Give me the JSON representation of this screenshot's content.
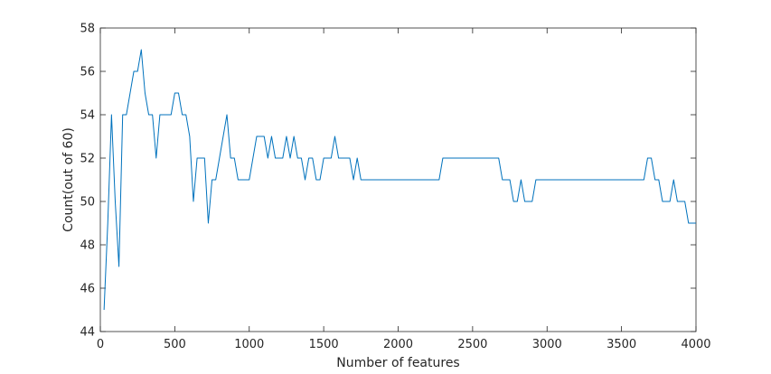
{
  "chart_data": {
    "type": "line",
    "title": "",
    "xlabel": "Number of features",
    "ylabel": "Count(out of 60)",
    "xlim": [
      0,
      4000
    ],
    "ylim": [
      44,
      58
    ],
    "xticks": [
      0,
      500,
      1000,
      1500,
      2000,
      2500,
      3000,
      3500,
      4000
    ],
    "yticks": [
      44,
      46,
      48,
      50,
      52,
      54,
      56,
      58
    ],
    "grid": false,
    "line_color": "#0072bd",
    "series": [
      {
        "x": [
          25,
          50,
          75,
          100,
          125,
          150,
          175,
          200,
          225,
          250,
          275,
          300,
          325,
          350,
          375,
          400,
          425,
          450,
          475,
          500,
          525,
          550,
          575,
          600,
          625,
          650,
          675,
          700,
          725,
          750,
          775,
          800,
          825,
          850,
          875,
          900,
          925,
          950,
          975,
          1000,
          1025,
          1050,
          1075,
          1100,
          1125,
          1150,
          1175,
          1200,
          1225,
          1250,
          1275,
          1300,
          1325,
          1350,
          1375,
          1400,
          1425,
          1450,
          1475,
          1500,
          1525,
          1550,
          1575,
          1600,
          1625,
          1650,
          1675,
          1700,
          1725,
          1750,
          1775,
          1800,
          2250,
          2275,
          2300,
          2325,
          2650,
          2675,
          2700,
          2725,
          2750,
          2775,
          2800,
          2825,
          2850,
          2875,
          2900,
          2925,
          2950,
          3625,
          3650,
          3675,
          3700,
          3725,
          3750,
          3775,
          3800,
          3825,
          3850,
          3875,
          3900,
          3925,
          3950,
          3975,
          4000
        ],
        "y": [
          45,
          49,
          54,
          50,
          47,
          54,
          54,
          55,
          56,
          56,
          57,
          55,
          54,
          54,
          52,
          54,
          54,
          54,
          54,
          55,
          55,
          54,
          54,
          53,
          50,
          52,
          52,
          52,
          49,
          51,
          51,
          52,
          53,
          54,
          52,
          52,
          51,
          51,
          51,
          51,
          52,
          53,
          53,
          53,
          52,
          53,
          52,
          52,
          52,
          53,
          52,
          53,
          52,
          52,
          51,
          52,
          52,
          51,
          51,
          52,
          52,
          52,
          53,
          52,
          52,
          52,
          52,
          51,
          52,
          51,
          51,
          51,
          51,
          51,
          52,
          52,
          52,
          52,
          51,
          51,
          51,
          50,
          50,
          51,
          50,
          50,
          50,
          51,
          51,
          51,
          51,
          52,
          52,
          51,
          51,
          50,
          50,
          50,
          51,
          50,
          50,
          50,
          49,
          49,
          49
        ]
      }
    ]
  }
}
